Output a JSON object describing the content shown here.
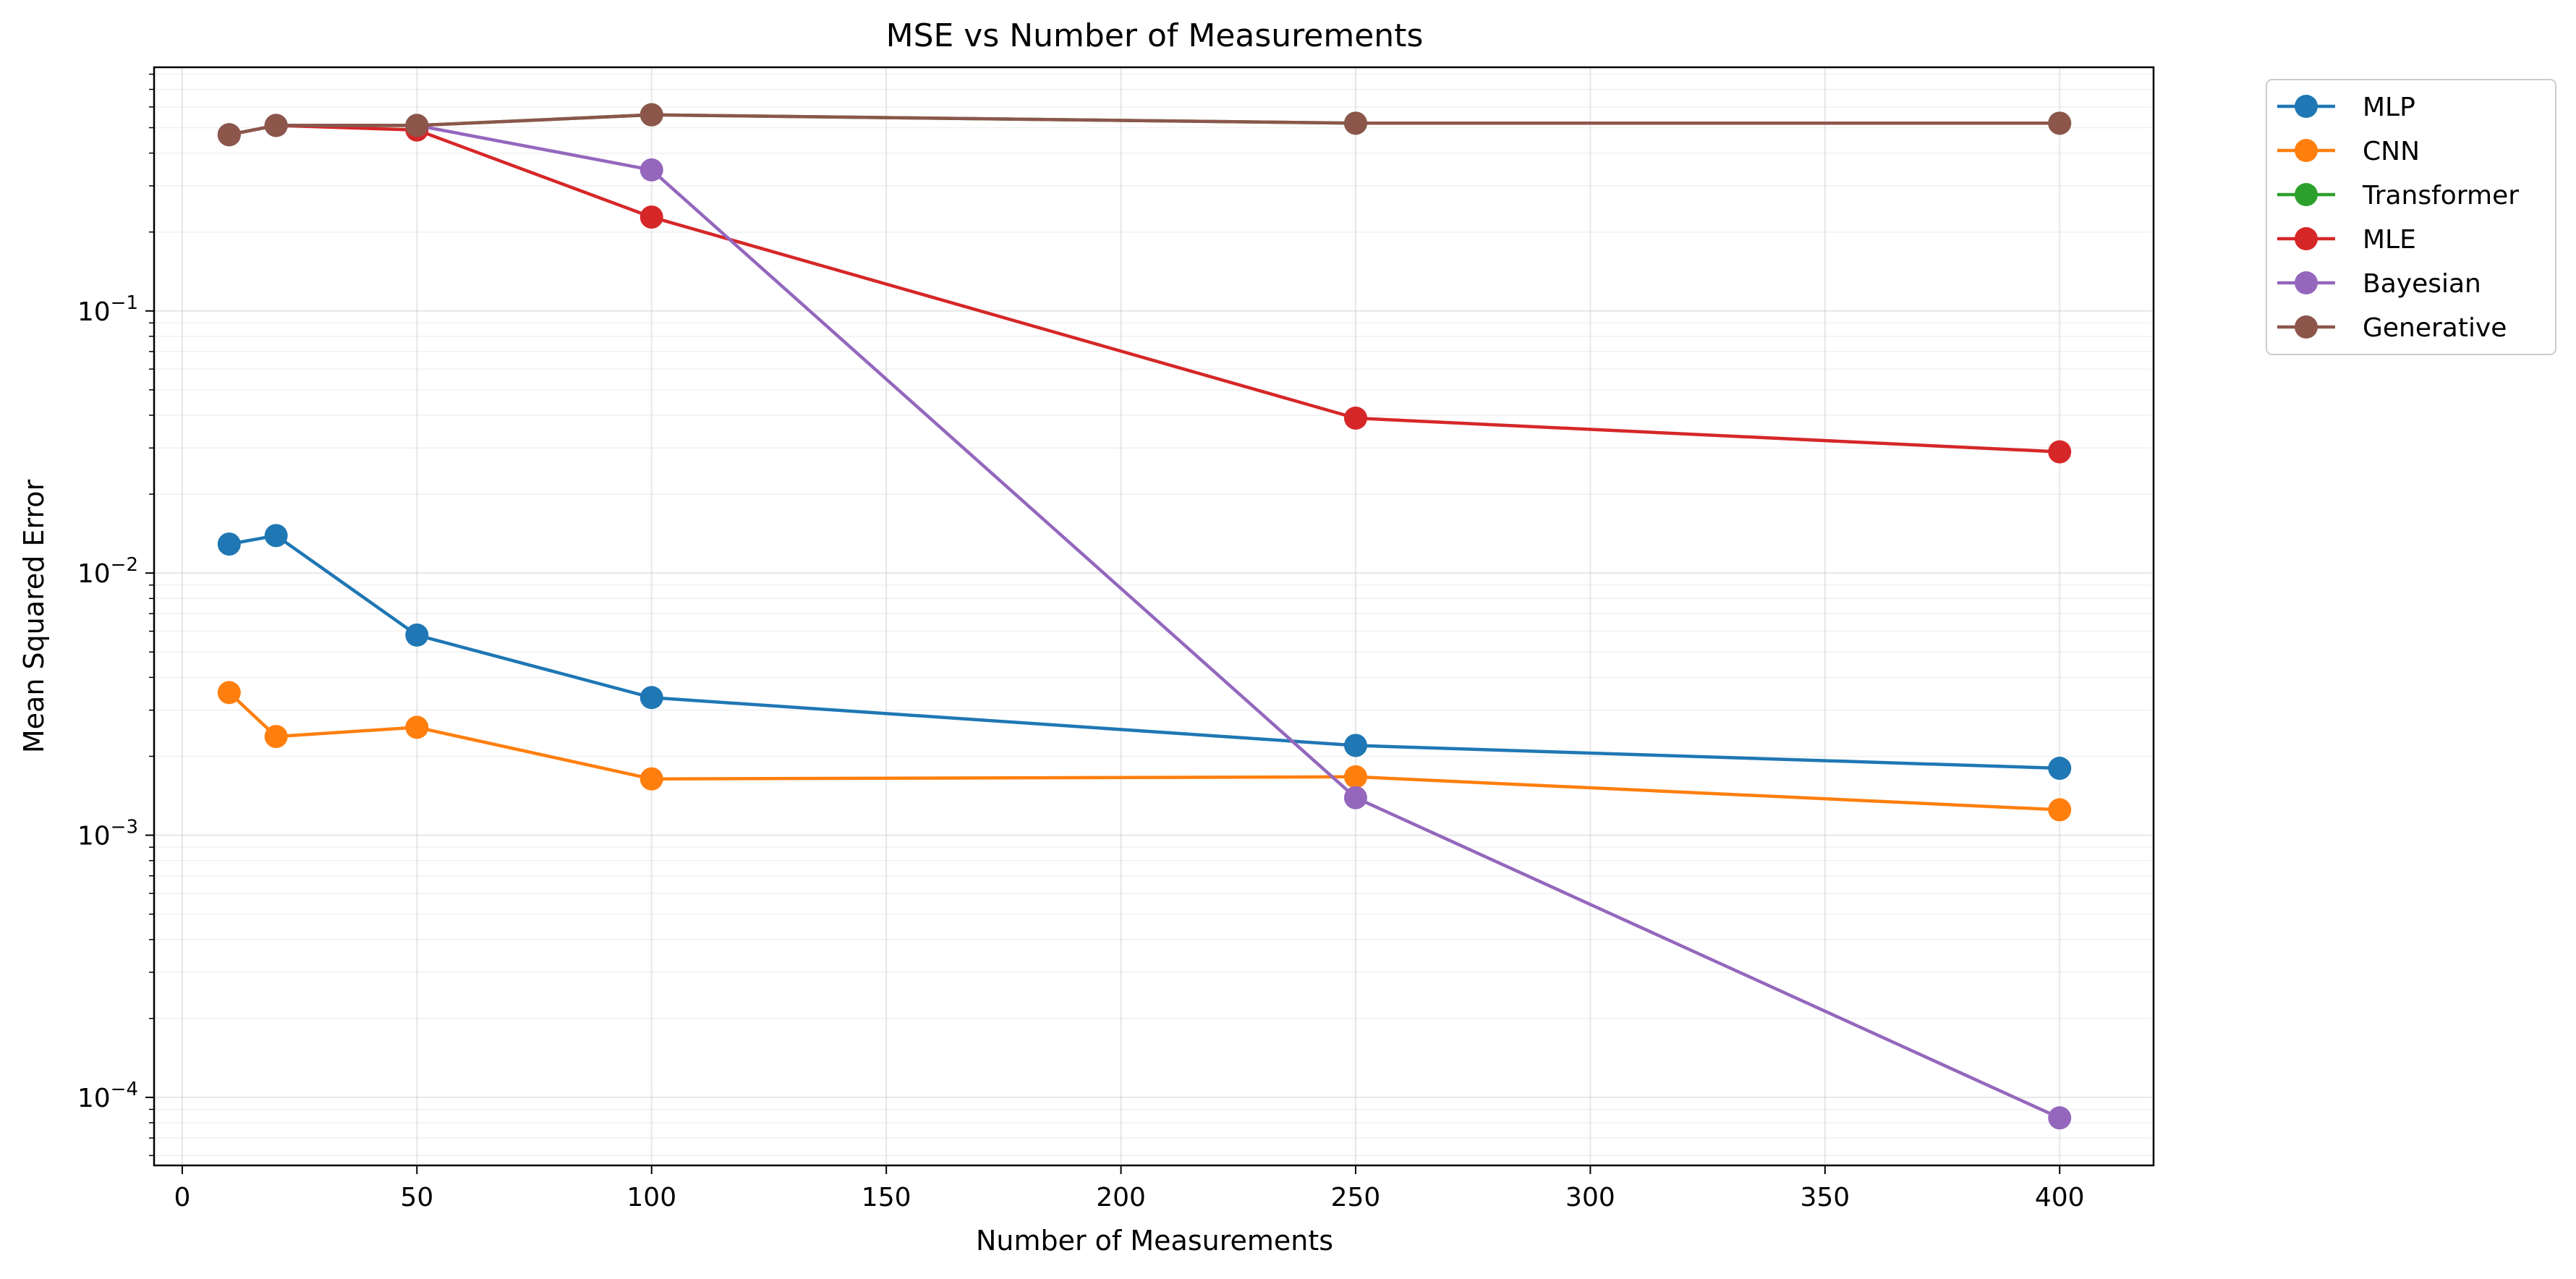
{
  "chart_data": {
    "type": "line",
    "title": "MSE vs Number of Measurements",
    "xlabel": "Number of Measurements",
    "ylabel": "Mean Squared Error",
    "yscale": "log",
    "xlim": [
      -6,
      420
    ],
    "ylim": [
      5.5e-05,
      0.85
    ],
    "grid": true,
    "legend_position": "outside top-right",
    "x": [
      10,
      20,
      50,
      100,
      250,
      400
    ],
    "x_ticks": [
      0,
      50,
      100,
      150,
      200,
      250,
      300,
      350,
      400
    ],
    "y_ticks": [
      {
        "value": 0.1,
        "base": "10",
        "exponent": "−1"
      },
      {
        "value": 0.01,
        "base": "10",
        "exponent": "−2"
      },
      {
        "value": 0.001,
        "base": "10",
        "exponent": "−3"
      },
      {
        "value": 0.0001,
        "base": "10",
        "exponent": "−4"
      }
    ],
    "series": [
      {
        "name": "MLP",
        "color": "#1f77b4",
        "values": [
          0.0129,
          0.0139,
          0.0058,
          0.00335,
          0.0022,
          0.0018
        ]
      },
      {
        "name": "CNN",
        "color": "#ff7f0e",
        "values": [
          0.0035,
          0.00238,
          0.00258,
          0.00164,
          0.00167,
          0.00125
        ]
      },
      {
        "name": "Transformer",
        "color": "#2ca02c",
        "values": [
          0.47,
          0.51,
          0.51,
          0.56,
          0.52,
          0.52
        ]
      },
      {
        "name": "MLE",
        "color": "#d62728",
        "values": [
          0.47,
          0.51,
          0.49,
          0.228,
          0.039,
          0.029
        ]
      },
      {
        "name": "Bayesian",
        "color": "#9467bd",
        "values": [
          0.47,
          0.51,
          0.51,
          0.345,
          0.00139,
          8.35e-05
        ]
      },
      {
        "name": "Generative",
        "color": "#8c564b",
        "values": [
          0.47,
          0.51,
          0.51,
          0.56,
          0.52,
          0.52
        ]
      }
    ]
  }
}
